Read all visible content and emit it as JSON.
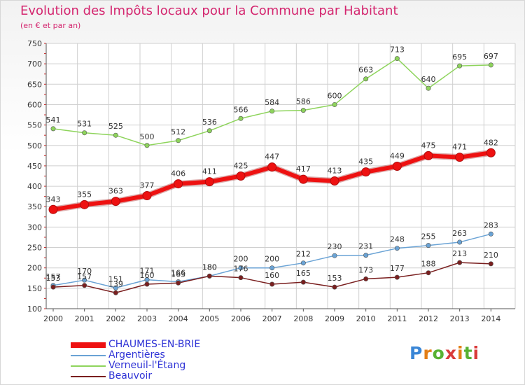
{
  "header": {
    "title": "Evolution des Impôts locaux pour la Commune par Habitant",
    "subtitle": "(en € et par an)"
  },
  "logo": {
    "text": "Proxiti",
    "letter_colors": [
      "#3a86d6",
      "#e37e16",
      "#58b233",
      "#d93b3b",
      "#e37e16",
      "#58b233",
      "#d93b3b"
    ]
  },
  "chart_data": {
    "type": "line",
    "title": "Evolution des Impôts locaux pour la Commune par Habitant",
    "subtitle": "(en € et par an)",
    "x": [
      "2000",
      "2001",
      "2002",
      "2003",
      "2004",
      "2005",
      "2006",
      "2007",
      "2008",
      "2009",
      "2010",
      "2011",
      "2012",
      "2013",
      "2014"
    ],
    "ylim": [
      100,
      750
    ],
    "yticks": [
      "100",
      "150",
      "200",
      "250",
      "300",
      "350",
      "400",
      "450",
      "500",
      "550",
      "600",
      "650",
      "700",
      "750"
    ],
    "grid": true,
    "legend_position": "bottom-left",
    "series": [
      {
        "name": "CHAUMES-EN-BRIE",
        "color": "#ee1111",
        "values": [
          343,
          355,
          363,
          377,
          406,
          411,
          425,
          447,
          417,
          413,
          435,
          449,
          475,
          471,
          482
        ]
      },
      {
        "name": "Argentières",
        "color": "#6aa3d5",
        "values": [
          157,
          170,
          151,
          171,
          166,
          180,
          200,
          200,
          212,
          230,
          231,
          248,
          255,
          263,
          283
        ]
      },
      {
        "name": "Verneuil-l'Étang",
        "color": "#8ed45c",
        "values": [
          541,
          531,
          525,
          500,
          512,
          536,
          566,
          584,
          586,
          600,
          663,
          713,
          640,
          695,
          697
        ]
      },
      {
        "name": "Beauvoir",
        "color": "#7a1f1f",
        "values": [
          153,
          157,
          139,
          160,
          163,
          180,
          176,
          160,
          165,
          153,
          173,
          177,
          188,
          213,
          210
        ]
      }
    ]
  }
}
